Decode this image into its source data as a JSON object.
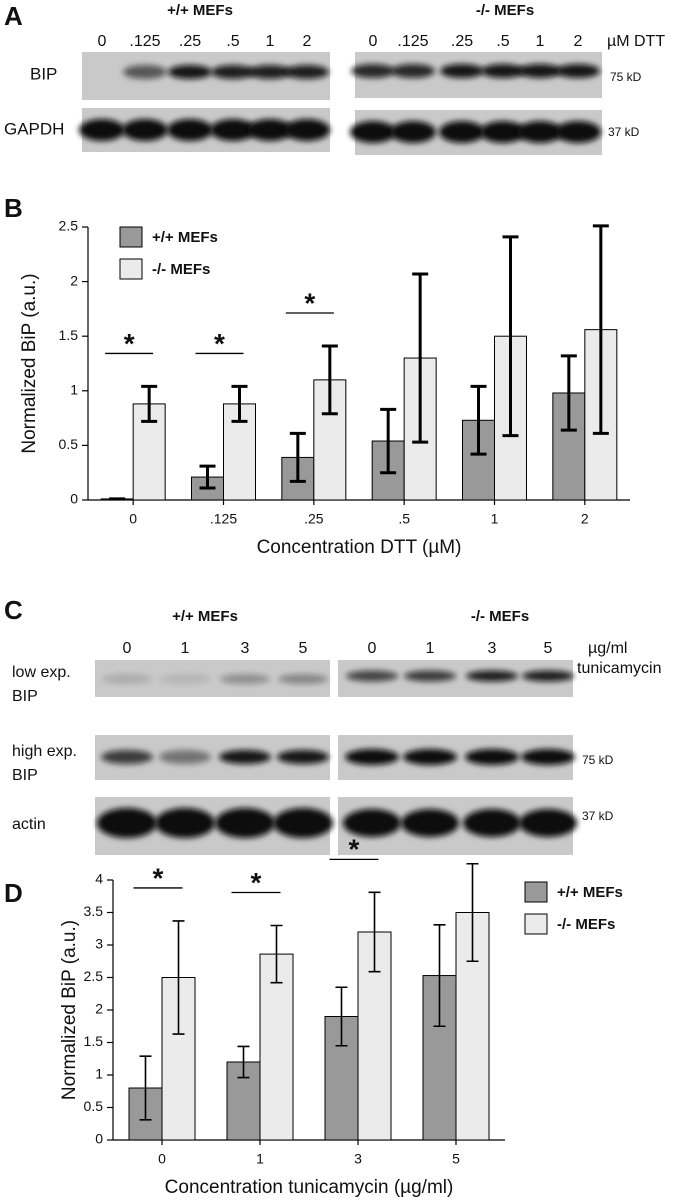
{
  "panel_a": {
    "label": "A",
    "groups": [
      "+/+ MEFs",
      "-/- MEFs"
    ],
    "lanes_left": [
      "0",
      ".125",
      ".25",
      ".5",
      "1",
      "2"
    ],
    "lanes_right": [
      "0",
      ".125",
      ".25",
      ".5",
      "1",
      "2"
    ],
    "unit": "µM DTT",
    "rows": [
      "BIP",
      "GAPDH"
    ],
    "markers": [
      "75 kD",
      "37 kD"
    ]
  },
  "chart_data": [
    {
      "type": "bar",
      "panel_label": "B",
      "categories": [
        "0",
        ".125",
        ".25",
        ".5",
        "1",
        "2"
      ],
      "series": [
        {
          "name": "+/+ MEFs",
          "color": "#999999",
          "values": [
            0.01,
            0.21,
            0.39,
            0.54,
            0.73,
            0.98
          ],
          "errors": [
            0,
            0.1,
            0.22,
            0.29,
            0.31,
            0.34
          ]
        },
        {
          "name": "-/- MEFs",
          "color": "#ebebeb",
          "values": [
            0.88,
            0.88,
            1.1,
            1.3,
            1.5,
            1.56
          ],
          "errors": [
            0.16,
            0.16,
            0.31,
            0.77,
            0.91,
            0.95
          ]
        }
      ],
      "significance_labels": [
        "*",
        "*",
        "*",
        null,
        null,
        null
      ],
      "ylim": [
        0,
        2.5
      ],
      "yticks": [
        0,
        0.5,
        1,
        1.5,
        2,
        2.5
      ],
      "xlabel": "Concentration DTT (µM)",
      "ylabel": "Normalized BiP (a.u.)",
      "legend": "upper left"
    },
    {
      "type": "bar",
      "panel_label": "D",
      "categories": [
        "0",
        "1",
        "3",
        "5"
      ],
      "series": [
        {
          "name": "+/+ MEFs",
          "color": "#999999",
          "values": [
            0.8,
            1.2,
            1.9,
            2.53
          ],
          "errors": [
            0.49,
            0.24,
            0.45,
            0.78
          ]
        },
        {
          "name": "-/- MEFs",
          "color": "#ebebeb",
          "values": [
            2.5,
            2.86,
            3.2,
            3.5
          ],
          "errors": [
            0.87,
            0.44,
            0.61,
            0.75
          ]
        }
      ],
      "significance_labels": [
        "*",
        "*",
        "*",
        null
      ],
      "ylim": [
        0,
        4
      ],
      "yticks": [
        0,
        0.5,
        1,
        1.5,
        2,
        2.5,
        3,
        3.5,
        4
      ],
      "xlabel": "Concentration tunicamycin (µg/ml)",
      "ylabel": "Normalized BiP (a.u.)",
      "legend": "right"
    }
  ],
  "panel_c": {
    "label": "C",
    "groups": [
      "+/+ MEFs",
      "-/- MEFs"
    ],
    "lanes_left": [
      "0",
      "1",
      "3",
      "5"
    ],
    "lanes_right": [
      "0",
      "1",
      "3",
      "5"
    ],
    "unit": "µg/ml",
    "treatment": "tunicamycin",
    "rows": [
      [
        "low exp.",
        "BIP"
      ],
      [
        "high exp.",
        "BIP"
      ],
      [
        "actin"
      ]
    ],
    "markers": [
      "75 kD",
      "37 kD"
    ]
  }
}
